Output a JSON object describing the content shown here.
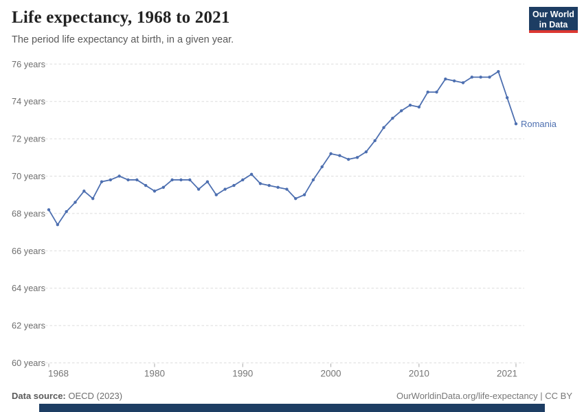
{
  "header": {
    "title": "Life expectancy, 1968 to 2021",
    "subtitle": "The period life expectancy at birth, in a given year.",
    "logo": {
      "line1": "Our World",
      "line2": "in Data"
    }
  },
  "chart_data": {
    "type": "line",
    "title": "Life expectancy, 1968 to 2021",
    "xlabel": "",
    "ylabel": "years",
    "grid": true,
    "legend_position": "end-of-line-label",
    "xlim": [
      1968,
      2021
    ],
    "ylim": [
      60,
      76
    ],
    "x_ticks": [
      1968,
      1980,
      1990,
      2000,
      2010,
      2021
    ],
    "y_ticks": [
      60,
      62,
      64,
      66,
      68,
      70,
      72,
      74,
      76
    ],
    "y_tick_suffix": " years",
    "series": [
      {
        "name": "Romania",
        "color": "#4d6fb0",
        "x": [
          1968,
          1969,
          1970,
          1971,
          1972,
          1973,
          1974,
          1975,
          1976,
          1977,
          1978,
          1979,
          1980,
          1981,
          1982,
          1983,
          1984,
          1985,
          1986,
          1987,
          1988,
          1989,
          1990,
          1991,
          1992,
          1993,
          1994,
          1995,
          1996,
          1997,
          1998,
          1999,
          2000,
          2001,
          2002,
          2003,
          2004,
          2005,
          2006,
          2007,
          2008,
          2009,
          2010,
          2011,
          2012,
          2013,
          2014,
          2015,
          2016,
          2017,
          2018,
          2019,
          2020,
          2021
        ],
        "values": [
          68.2,
          67.4,
          68.1,
          68.6,
          69.2,
          68.8,
          69.7,
          69.8,
          70.0,
          69.8,
          69.8,
          69.5,
          69.2,
          69.4,
          69.8,
          69.8,
          69.8,
          69.3,
          69.7,
          69.0,
          69.3,
          69.5,
          69.8,
          70.1,
          69.6,
          69.5,
          69.4,
          69.3,
          68.8,
          69.0,
          69.8,
          70.5,
          71.2,
          71.1,
          70.9,
          71.0,
          71.3,
          71.9,
          72.6,
          73.1,
          73.5,
          73.8,
          73.7,
          74.5,
          74.5,
          75.2,
          75.1,
          75.0,
          75.3,
          75.3,
          75.3,
          75.6,
          74.2,
          72.8
        ]
      }
    ]
  },
  "footer": {
    "source_label": "Data source:",
    "source_value": " OECD (2023)",
    "right_text": "OurWorldinData.org/life-expectancy | CC BY"
  },
  "colors": {
    "series_line": "#4d6fb0",
    "series_label": "#4d6fb0",
    "grid": "#dcdcdc",
    "axis_text": "#6e6e6e",
    "logo_bg": "#1d3d63",
    "logo_accent": "#dc3732",
    "timeline_bar": "#1d3d63"
  }
}
